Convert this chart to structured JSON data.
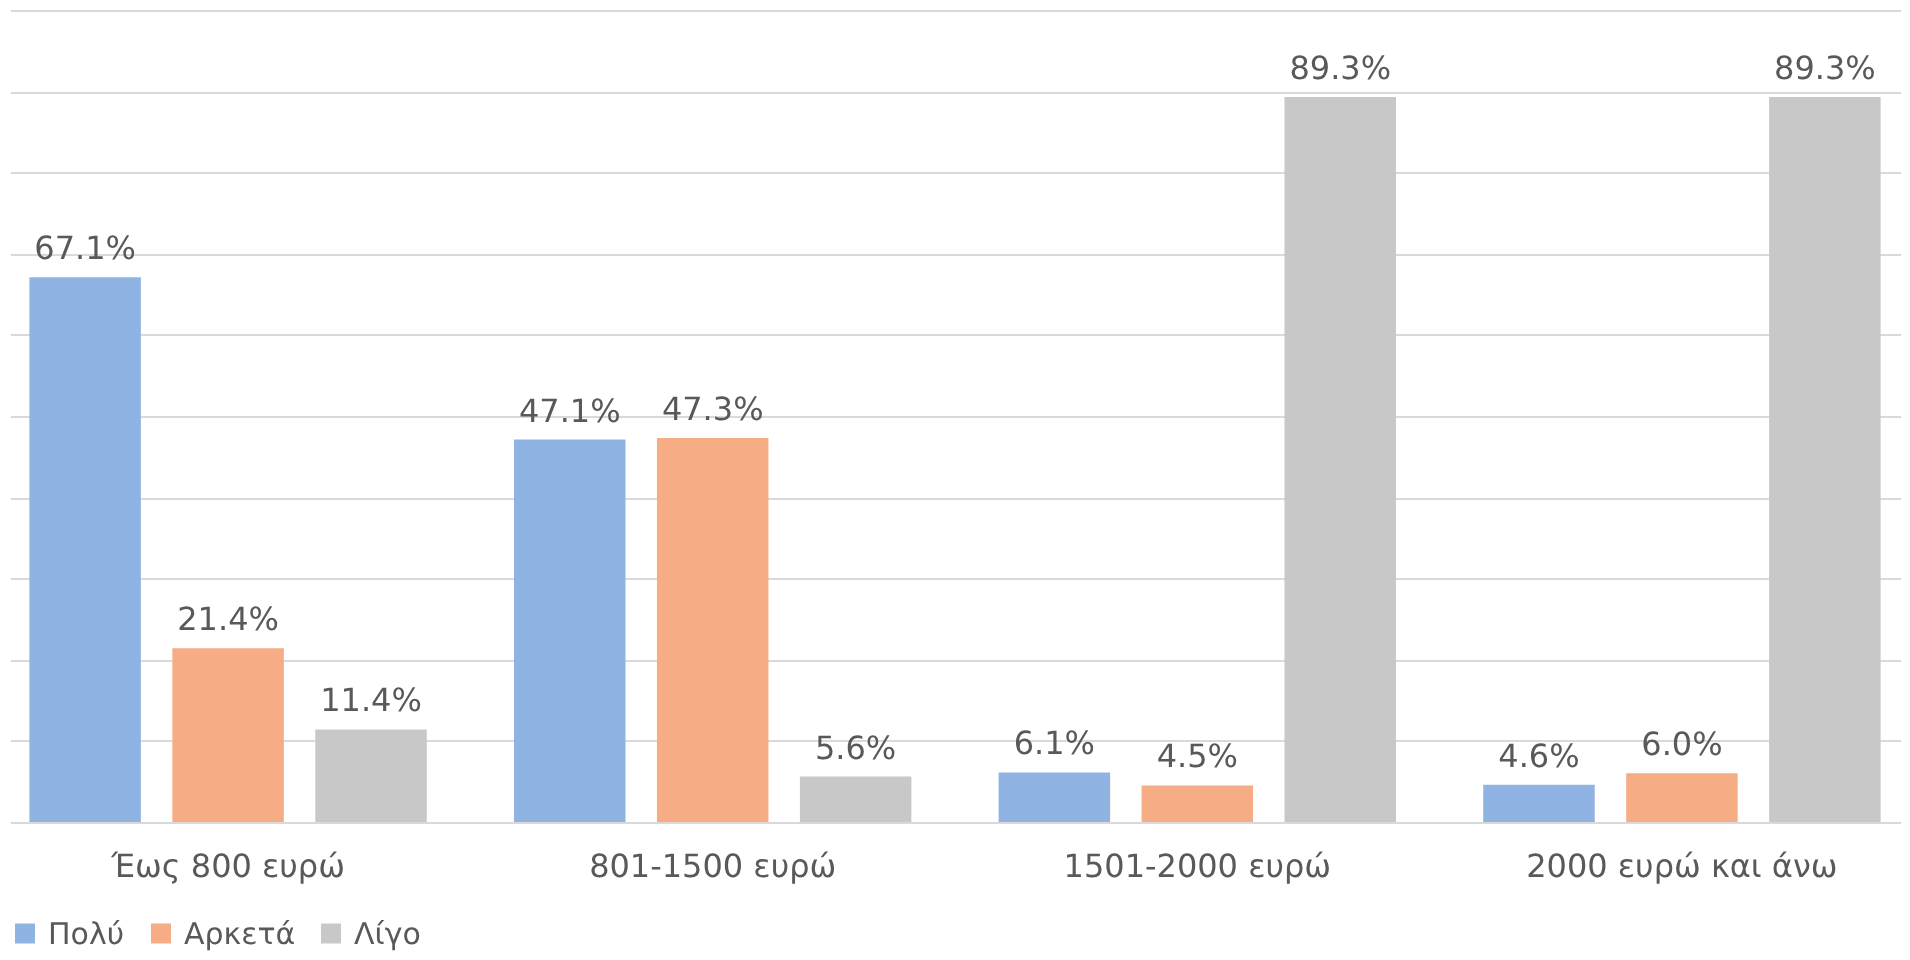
{
  "chart_data": {
    "type": "bar",
    "categories": [
      "Έως 800 ευρώ",
      "801-1500 ευρώ",
      "1501-2000 ευρώ",
      "2000 ευρώ και άνω"
    ],
    "series": [
      {
        "name": "Πολύ",
        "color": "#8fb4e3",
        "values": [
          67.1,
          47.1,
          6.1,
          4.6
        ],
        "value_labels": [
          "67.1%",
          "47.1%",
          "6.1%",
          "4.6%"
        ]
      },
      {
        "name": "Αρκετά",
        "color": "#f6ad86",
        "values": [
          21.4,
          47.3,
          4.5,
          6.0
        ],
        "value_labels": [
          "21.4%",
          "47.3%",
          "4.5%",
          "6.0%"
        ]
      },
      {
        "name": "Λίγο",
        "color": "#c8c8c8",
        "values": [
          11.4,
          5.6,
          89.3,
          89.3
        ],
        "value_labels": [
          "11.4%",
          "5.6%",
          "89.3%",
          "89.3%"
        ]
      }
    ],
    "ylim": [
      0,
      100
    ],
    "yticks": [
      {
        "value": 0,
        "label": null
      },
      {
        "value": 10,
        "label": null
      },
      {
        "value": 20,
        "label": null
      },
      {
        "value": 30,
        "label": null
      },
      {
        "value": 40,
        "label": null
      },
      {
        "value": 50,
        "label": null
      },
      {
        "value": 60,
        "label": null
      },
      {
        "value": 70,
        "label": null
      },
      {
        "value": 80,
        "label": null
      },
      {
        "value": 90,
        "label": null
      },
      {
        "value": 100,
        "label": null
      }
    ],
    "tick_labels": "x",
    "grid": "y",
    "legend": "bottom"
  }
}
